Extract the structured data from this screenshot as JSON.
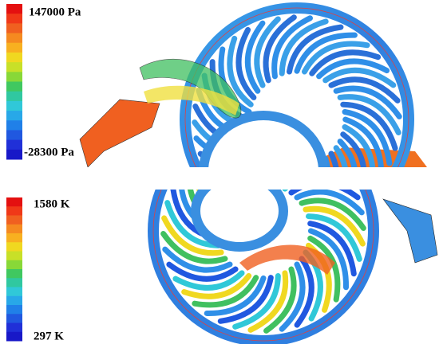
{
  "panels": [
    {
      "max_label": "147000 Pa",
      "min_label": "-28300 Pa"
    },
    {
      "max_label": "1580 K",
      "min_label": "297 K"
    }
  ]
}
